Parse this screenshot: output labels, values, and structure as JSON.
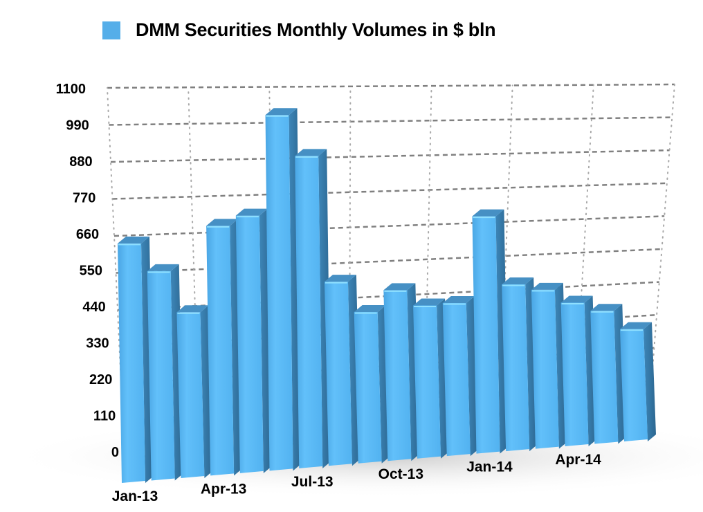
{
  "chart_data": {
    "type": "bar",
    "style": "3d-perspective",
    "title": "",
    "legend": [
      {
        "label": "DMM Securities Monthly Volumes in $ bln",
        "color": "#55aee9"
      }
    ],
    "legend_position": "top",
    "xlabel": "",
    "ylabel": "",
    "ylim": [
      0,
      1100
    ],
    "yticks": [
      0,
      110,
      220,
      330,
      440,
      550,
      660,
      770,
      880,
      990,
      1100
    ],
    "grid": true,
    "categories": [
      "Jan-13",
      "Feb-13",
      "Mar-13",
      "Apr-13",
      "May-13",
      "Jun-13",
      "Jul-13",
      "Aug-13",
      "Sep-13",
      "Oct-13",
      "Nov-13",
      "Dec-13",
      "Jan-14",
      "Feb-14",
      "Mar-14",
      "Apr-14",
      "May-14",
      "Jun-14"
    ],
    "xtick_labels": [
      {
        "index": 0,
        "label": "Jan-13"
      },
      {
        "index": 3,
        "label": "Apr-13"
      },
      {
        "index": 6,
        "label": "Jul-13"
      },
      {
        "index": 9,
        "label": "Oct-13"
      },
      {
        "index": 12,
        "label": "Jan-14"
      },
      {
        "index": 15,
        "label": "Apr-14"
      }
    ],
    "series": [
      {
        "name": "DMM Securities Monthly Volumes in $ bln",
        "color": "#55aee9",
        "values": [
          680,
          600,
          480,
          730,
          760,
          1060,
          940,
          560,
          465,
          530,
          480,
          485,
          760,
          540,
          520,
          475,
          445,
          380
        ]
      }
    ]
  }
}
